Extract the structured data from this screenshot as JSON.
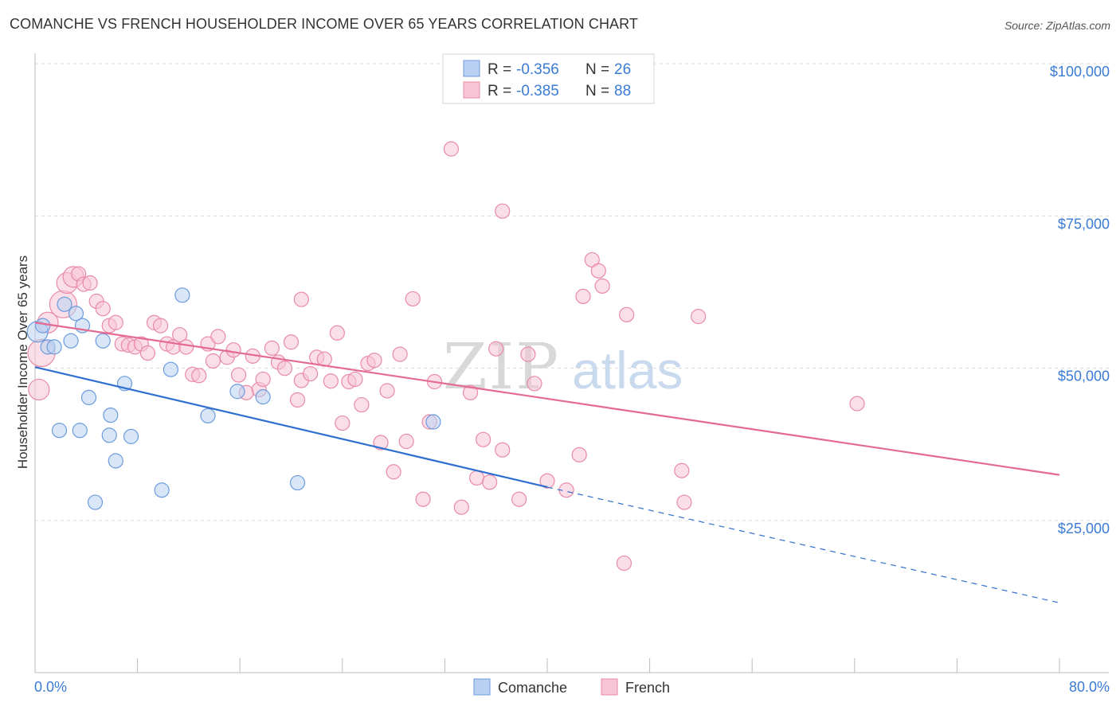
{
  "title": "COMANCHE VS FRENCH HOUSEHOLDER INCOME OVER 65 YEARS CORRELATION CHART",
  "source": "Source: ZipAtlas.com",
  "watermark": {
    "zip": "ZIP",
    "atlas": "atlas"
  },
  "colors": {
    "comanche_fill": "#b8d1f3",
    "comanche_stroke": "#6c9bdc",
    "comanche_line": "#2f6fd0",
    "french_fill": "#f7c5d5",
    "french_stroke": "#e88aa8",
    "french_line": "#e46a92",
    "axis_label": "#3a7bd5",
    "grid": "#dddddd"
  },
  "legend": {
    "rows": [
      {
        "r_label": "R = ",
        "r_value": "-0.356",
        "n_label": "N = ",
        "n_value": "26",
        "series": "comanche"
      },
      {
        "r_label": "R = ",
        "r_value": "-0.385",
        "n_label": "N = ",
        "n_value": "88",
        "series": "french"
      }
    ]
  },
  "bottom_legend": [
    {
      "label": "Comanche",
      "series": "comanche"
    },
    {
      "label": "French",
      "series": "french"
    }
  ],
  "chart_data": {
    "type": "scatter",
    "title": "COMANCHE VS FRENCH HOUSEHOLDER INCOME OVER 65 YEARS CORRELATION CHART",
    "xlabel": "",
    "ylabel": "Householder Income Over 65 years",
    "xlim": [
      0,
      80
    ],
    "ylim": [
      0,
      105000
    ],
    "x_tick_labels": {
      "left": "0.0%",
      "right": "80.0%"
    },
    "y_ticks": [
      {
        "value": 25000,
        "label": "$25,000"
      },
      {
        "value": 50000,
        "label": "$50,000"
      },
      {
        "value": 75000,
        "label": "$75,000"
      },
      {
        "value": 100000,
        "label": "$100,000"
      }
    ],
    "series": [
      {
        "name": "Comanche",
        "key": "comanche",
        "points": [
          [
            0.2,
            56000,
            2
          ],
          [
            0.6,
            57000,
            1
          ],
          [
            1.0,
            53500,
            1
          ],
          [
            1.5,
            53500,
            1
          ],
          [
            2.3,
            60500,
            1
          ],
          [
            2.8,
            54500,
            1
          ],
          [
            3.2,
            59000,
            1
          ],
          [
            3.7,
            57000,
            1
          ],
          [
            1.9,
            39800,
            1
          ],
          [
            3.5,
            39800,
            1
          ],
          [
            4.2,
            45200,
            1
          ],
          [
            5.3,
            54500,
            1
          ],
          [
            5.8,
            39000,
            1
          ],
          [
            5.9,
            42300,
            1
          ],
          [
            6.3,
            34800,
            1
          ],
          [
            4.7,
            28000,
            1
          ],
          [
            7.0,
            47500,
            1
          ],
          [
            7.5,
            38800,
            1
          ],
          [
            9.9,
            30000,
            1
          ],
          [
            10.6,
            49800,
            1
          ],
          [
            11.5,
            62000,
            1
          ],
          [
            13.5,
            42200,
            1
          ],
          [
            15.8,
            46200,
            1
          ],
          [
            17.8,
            45300,
            1
          ],
          [
            20.5,
            31200,
            1
          ],
          [
            31.1,
            41200,
            1
          ]
        ],
        "trend": {
          "x0": 0,
          "y0": 50200,
          "x1": 40,
          "y1": 30500,
          "dash_x1": 80,
          "dash_y1": 11500
        }
      },
      {
        "name": "French",
        "key": "french",
        "points": [
          [
            0.3,
            46500,
            2
          ],
          [
            0.5,
            52500,
            3
          ],
          [
            1.0,
            57500,
            2
          ],
          [
            2.2,
            60500,
            3
          ],
          [
            2.5,
            64000,
            2
          ],
          [
            3.0,
            65000,
            2
          ],
          [
            3.4,
            65500,
            1
          ],
          [
            3.8,
            63800,
            1
          ],
          [
            4.3,
            64000,
            1
          ],
          [
            4.8,
            61000,
            1
          ],
          [
            5.3,
            59800,
            1
          ],
          [
            5.8,
            57000,
            1
          ],
          [
            6.3,
            57500,
            1
          ],
          [
            6.8,
            54000,
            1
          ],
          [
            7.3,
            53800,
            1
          ],
          [
            7.8,
            53500,
            1
          ],
          [
            8.3,
            54000,
            1
          ],
          [
            8.8,
            52500,
            1
          ],
          [
            9.3,
            57500,
            1
          ],
          [
            9.8,
            57000,
            1
          ],
          [
            10.3,
            54000,
            1
          ],
          [
            10.8,
            53500,
            1
          ],
          [
            11.3,
            55500,
            1
          ],
          [
            11.8,
            53500,
            1
          ],
          [
            12.3,
            49000,
            1
          ],
          [
            12.8,
            48800,
            1
          ],
          [
            13.5,
            54000,
            1
          ],
          [
            13.9,
            51200,
            1
          ],
          [
            14.3,
            55200,
            1
          ],
          [
            15.0,
            51800,
            1
          ],
          [
            15.5,
            53000,
            1
          ],
          [
            15.9,
            48900,
            1
          ],
          [
            16.5,
            46000,
            1
          ],
          [
            17.0,
            52000,
            1
          ],
          [
            17.5,
            46500,
            1
          ],
          [
            17.8,
            48200,
            1
          ],
          [
            18.5,
            53300,
            1
          ],
          [
            19.0,
            51000,
            1
          ],
          [
            19.5,
            50000,
            1
          ],
          [
            20.0,
            54300,
            1
          ],
          [
            20.5,
            44800,
            1
          ],
          [
            20.8,
            48000,
            1
          ],
          [
            21.5,
            49100,
            1
          ],
          [
            22.0,
            51800,
            1
          ],
          [
            20.8,
            61300,
            1
          ],
          [
            22.6,
            51500,
            1
          ],
          [
            23.1,
            47900,
            1
          ],
          [
            23.6,
            55800,
            1
          ],
          [
            24.0,
            41000,
            1
          ],
          [
            24.5,
            47800,
            1
          ],
          [
            25.0,
            48200,
            1
          ],
          [
            25.5,
            44000,
            1
          ],
          [
            26.0,
            50800,
            1
          ],
          [
            26.5,
            51300,
            1
          ],
          [
            27.0,
            37800,
            1
          ],
          [
            27.5,
            46300,
            1
          ],
          [
            28.0,
            33000,
            1
          ],
          [
            28.5,
            52300,
            1
          ],
          [
            29.0,
            38000,
            1
          ],
          [
            29.5,
            61400,
            1
          ],
          [
            30.3,
            28500,
            1
          ],
          [
            30.8,
            41200,
            1
          ],
          [
            31.2,
            47800,
            1
          ],
          [
            32.5,
            86000,
            1
          ],
          [
            33.3,
            27200,
            1
          ],
          [
            34.0,
            46000,
            1
          ],
          [
            34.5,
            32000,
            1
          ],
          [
            35.0,
            38300,
            1
          ],
          [
            35.5,
            31300,
            1
          ],
          [
            36.0,
            53200,
            1
          ],
          [
            36.5,
            36600,
            1
          ],
          [
            36.5,
            75800,
            1
          ],
          [
            37.8,
            28500,
            1
          ],
          [
            38.5,
            52300,
            1
          ],
          [
            39.0,
            47500,
            1
          ],
          [
            40.0,
            31500,
            1
          ],
          [
            41.5,
            30000,
            1
          ],
          [
            42.5,
            35800,
            1
          ],
          [
            42.8,
            61800,
            1
          ],
          [
            43.5,
            67800,
            1
          ],
          [
            44.0,
            66000,
            1
          ],
          [
            44.3,
            63500,
            1
          ],
          [
            46.0,
            18000,
            1
          ],
          [
            46.2,
            58800,
            1
          ],
          [
            50.5,
            33200,
            1
          ],
          [
            50.7,
            28000,
            1
          ],
          [
            51.8,
            58500,
            1
          ],
          [
            64.2,
            44200,
            1
          ]
        ],
        "trend": {
          "x0": 0,
          "y0": 57500,
          "x1": 80,
          "y1": 32500
        }
      }
    ]
  }
}
